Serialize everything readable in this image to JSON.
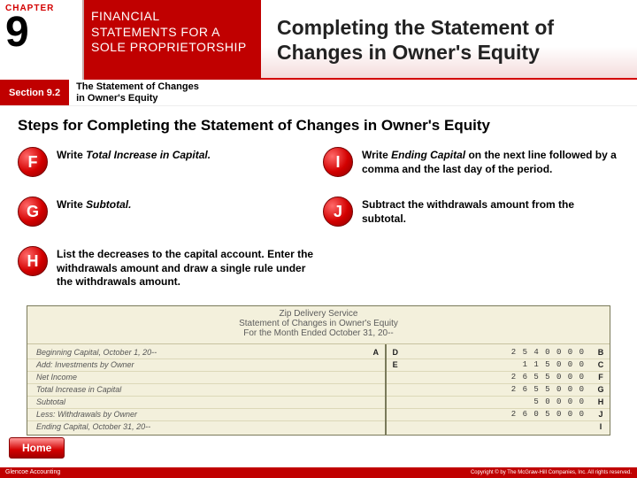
{
  "chapter": {
    "label": "CHAPTER",
    "number": "9"
  },
  "title_block": "FINANCIAL\nSTATEMENTS FOR A\nSOLE PROPRIETORSHIP",
  "page_title": "Completing the Statement of Changes in Owner's Equity",
  "section": {
    "label": "Section 9.2",
    "subtitle": "The Statement of Changes\nin Owner's Equity"
  },
  "steps_title": "Steps for Completing the Statement of Changes in Owner's Equity",
  "steps": {
    "F": "Write <em>Total Increase in Capital.</em>",
    "G": "Write <em>Subtotal.</em>",
    "H": "List the decreases to the capital account. Enter the withdrawals amount and draw a single rule under the withdrawals amount.",
    "I": "Write <em>Ending Capital</em> on the next line followed by a comma and the last day of the period.",
    "J": "Subtract the withdrawals amount from the subtotal."
  },
  "ledger": {
    "head1": "Zip Delivery Service",
    "head2": "Statement of Changes in Owner's Equity",
    "head3": "For the Month Ended October 31, 20--",
    "rows_left": [
      {
        "label": "Beginning Capital, October 1, 20--",
        "tag": "A"
      },
      {
        "label": "Add: Investments by Owner",
        "tag": ""
      },
      {
        "label": "Net Income",
        "tag": ""
      },
      {
        "label": "Total Increase in Capital",
        "tag": ""
      },
      {
        "label": "Subtotal",
        "tag": ""
      },
      {
        "label": "Less: Withdrawals by Owner",
        "tag": ""
      },
      {
        "label": "Ending Capital, October 31, 20--",
        "tag": ""
      }
    ],
    "rows_right": [
      {
        "d": "D",
        "amt": "2 5 4 0 0 0 0",
        "tag": "B"
      },
      {
        "d": "E",
        "amt": "1 1 5 0 0 0",
        "tag": "C"
      },
      {
        "d": "",
        "amt": "2 6 5 5 0 0 0",
        "tag": "F"
      },
      {
        "d": "",
        "amt": "2 6 5 5 0 0 0",
        "tag": "G"
      },
      {
        "d": "",
        "amt": "5 0 0 0 0",
        "tag": "H"
      },
      {
        "d": "",
        "amt": "2 6 0 5 0 0 0",
        "tag": "J"
      },
      {
        "d": "",
        "amt": "",
        "tag": "I"
      }
    ]
  },
  "home": "Home",
  "footer": {
    "left": "Glencoe Accounting",
    "right": "Copyright © by The McGraw-Hill Companies, Inc. All rights reserved."
  },
  "colors": {
    "brand_red": "#c00000",
    "accent_red": "#d30000",
    "ledger_bg": "#f3f0dc"
  }
}
